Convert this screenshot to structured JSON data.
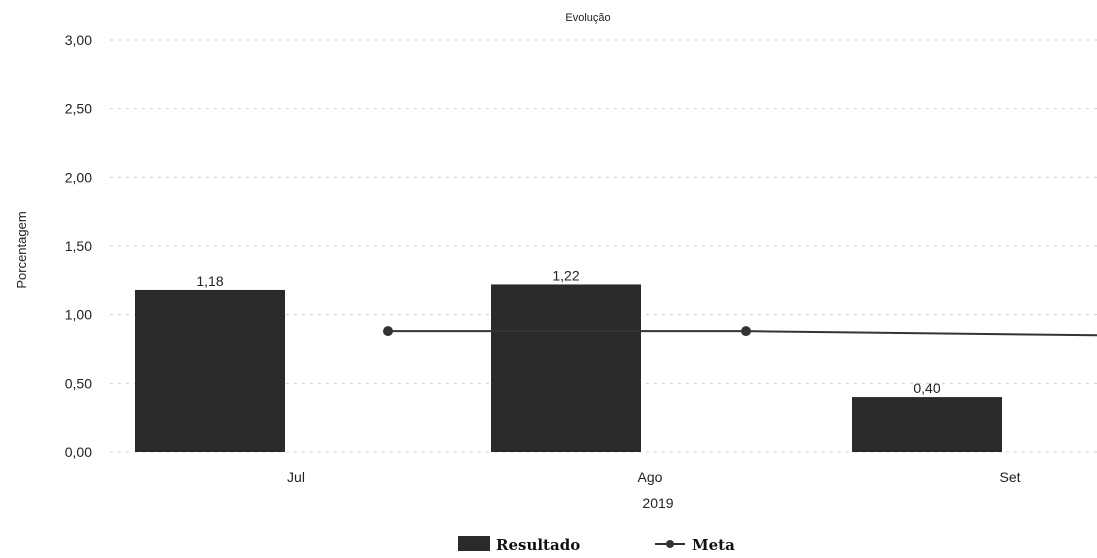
{
  "chart_data": {
    "type": "bar",
    "title": "Evolução",
    "ylabel": "Porcentagem",
    "xlabel": "2019",
    "ylim": [
      0,
      3
    ],
    "yticks": [
      "0,00",
      "0,50",
      "1,00",
      "1,50",
      "2,00",
      "2,50",
      "3,00"
    ],
    "categories": [
      "Jul",
      "Ago",
      "Set"
    ],
    "series": [
      {
        "name": "Resultado",
        "type": "bar",
        "color": "#2a2a2a",
        "values": [
          1.18,
          1.22,
          0.4
        ],
        "labels": [
          "1,18",
          "1,22",
          "0,40"
        ]
      },
      {
        "name": "Meta",
        "type": "line",
        "color": "#333333",
        "values": [
          0.88,
          0.88,
          0.85
        ]
      }
    ],
    "legend_position": "bottom-center",
    "grid": true
  }
}
